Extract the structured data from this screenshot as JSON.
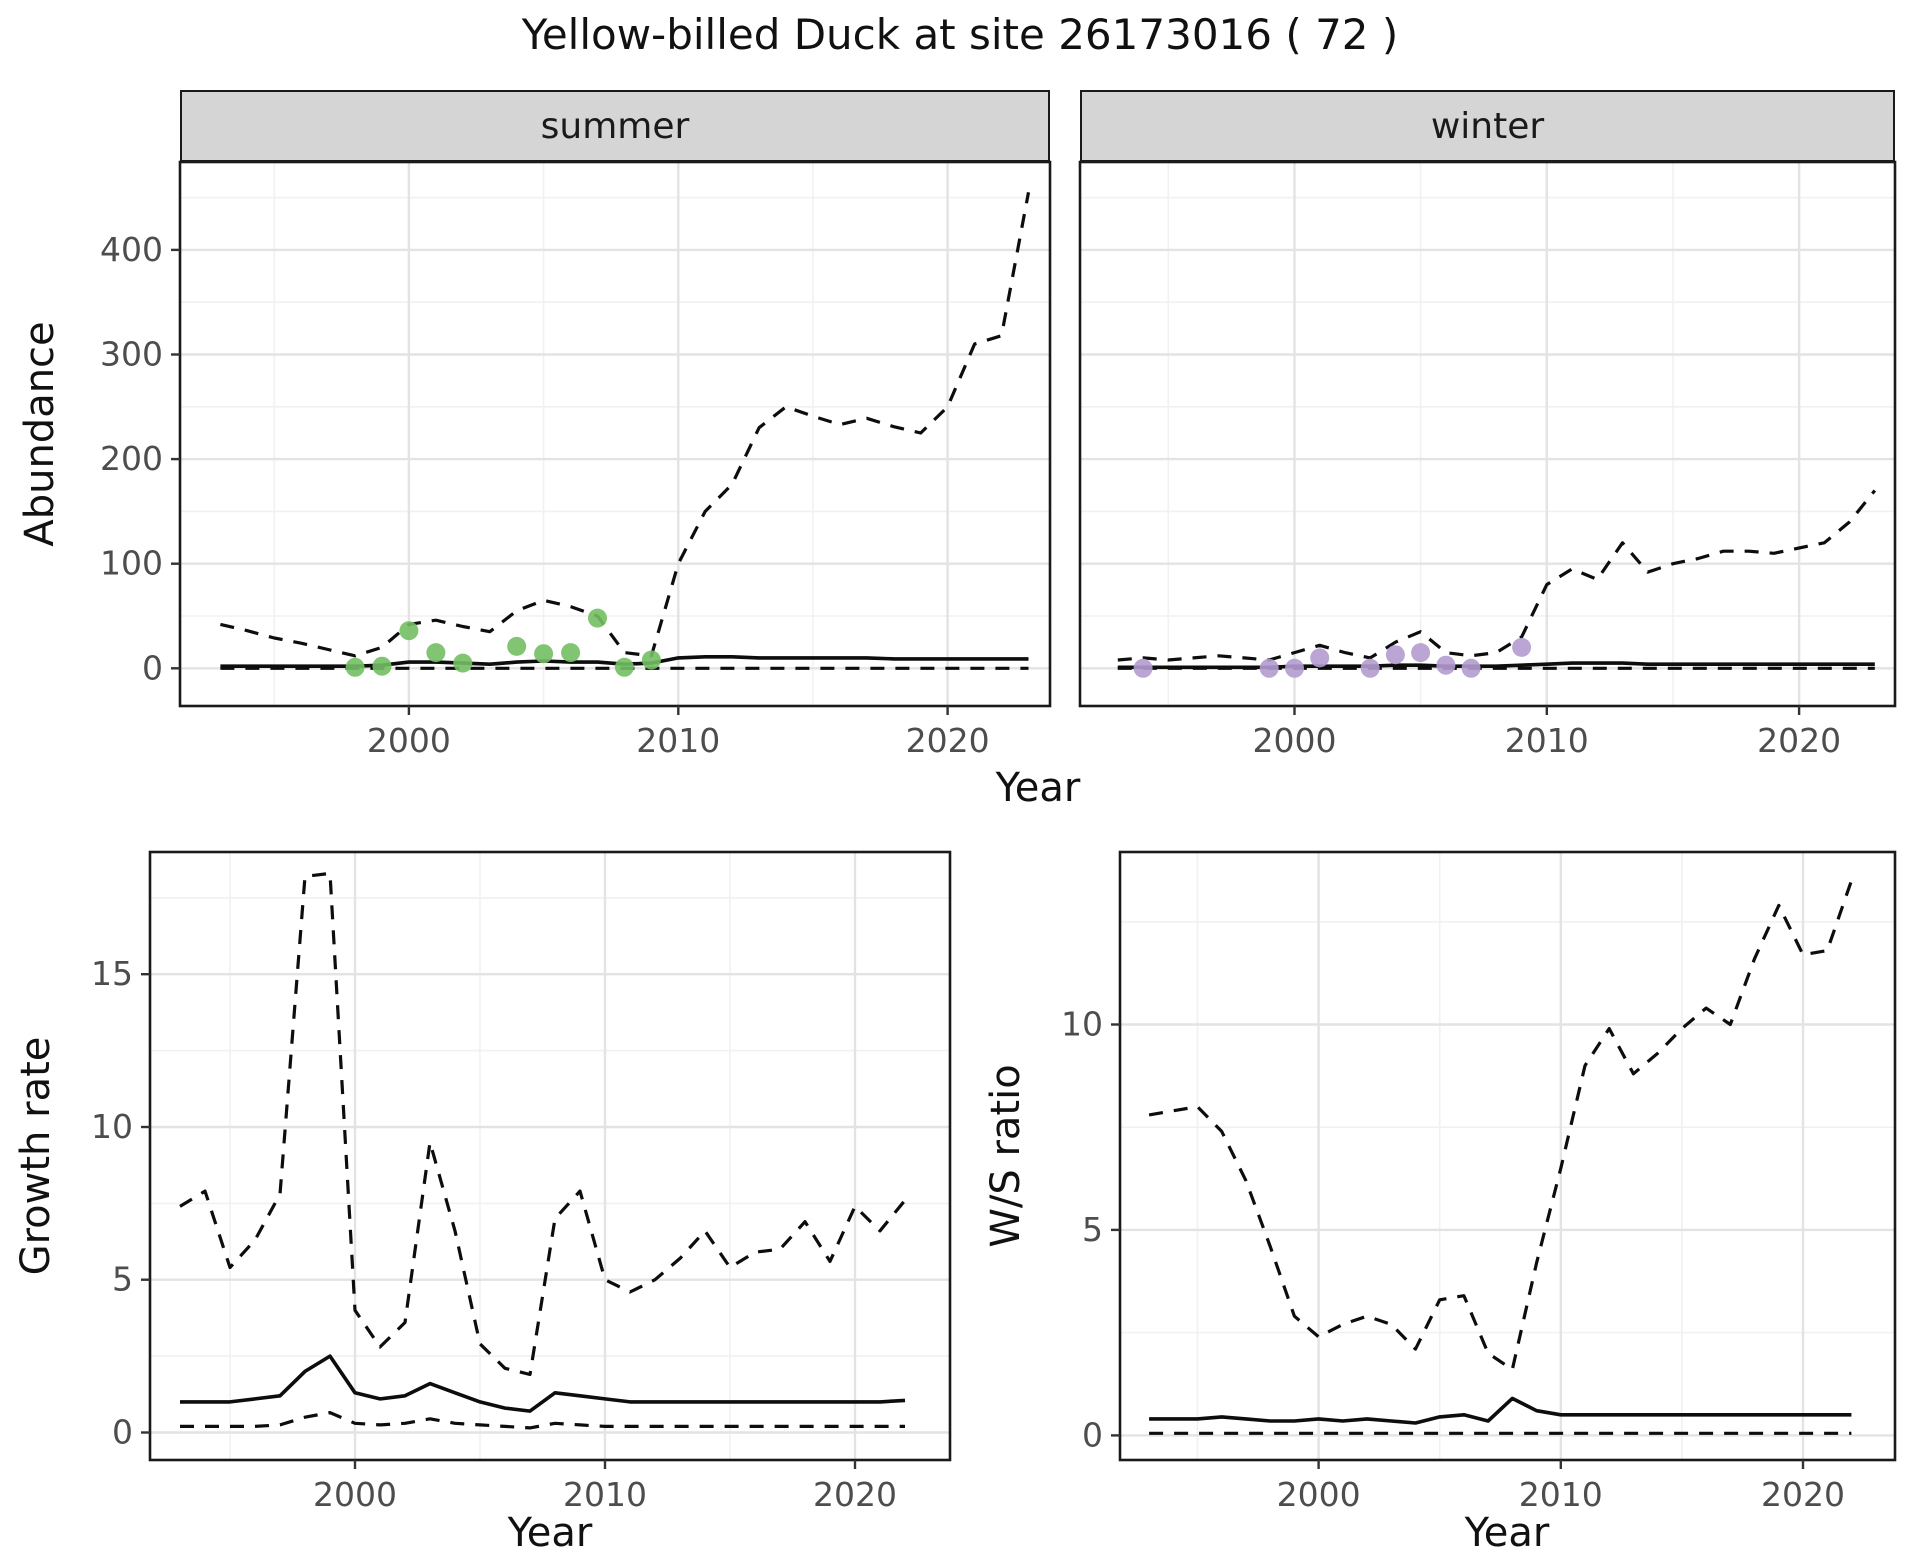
{
  "title": "Yellow-billed Duck at site 26173016 ( 72 )",
  "style": {
    "line_color": "#0d0d0d",
    "strip_background": "#d5d5d5",
    "summer_point_color": "#73bf63",
    "winter_point_color": "#b49bd0"
  },
  "chart_data": [
    {
      "id": "summer-abundance",
      "type": "line",
      "title": "summer",
      "xlabel": "Year",
      "ylabel": "Abundance",
      "xlim": [
        1991.5,
        2023.8
      ],
      "ylim": [
        -36,
        484
      ],
      "xticks": [
        2000,
        2010,
        2020
      ],
      "yticks": [
        0,
        100,
        200,
        300,
        400
      ],
      "x": [
        1993,
        1994,
        1995,
        1996,
        1997,
        1998,
        1999,
        2000,
        2001,
        2002,
        2003,
        2004,
        2005,
        2006,
        2007,
        2008,
        2009,
        2010,
        2011,
        2012,
        2013,
        2014,
        2015,
        2016,
        2017,
        2018,
        2019,
        2020,
        2021,
        2022,
        2023
      ],
      "series": [
        {
          "name": "upper-ci",
          "style": "dashed",
          "y": [
            42,
            36,
            29,
            24,
            18,
            12,
            20,
            42,
            46,
            40,
            35,
            55,
            65,
            59,
            50,
            15,
            12,
            100,
            150,
            176,
            230,
            250,
            241,
            233,
            239,
            231,
            225,
            250,
            310,
            318,
            455
          ]
        },
        {
          "name": "median",
          "style": "solid",
          "y": [
            2,
            2,
            2,
            2,
            2,
            2,
            3,
            6,
            6,
            5,
            4,
            6,
            7,
            6,
            6,
            4,
            5,
            10,
            11,
            11,
            10,
            10,
            10,
            10,
            10,
            9,
            9,
            9,
            9,
            9,
            9
          ]
        },
        {
          "name": "lower-ci",
          "style": "dashed",
          "y": [
            0,
            0,
            0,
            0,
            0,
            0,
            0,
            0,
            0,
            0,
            0,
            0,
            0,
            0,
            0,
            0,
            0,
            0,
            0,
            0,
            0,
            0,
            0,
            0,
            0,
            0,
            0,
            0,
            0,
            0,
            0
          ]
        }
      ],
      "points": {
        "name": "observed-counts",
        "color": "#73bf63",
        "x": [
          1998,
          1999,
          2000,
          2001,
          2002,
          2004,
          2005,
          2006,
          2007,
          2008,
          2009
        ],
        "y": [
          1,
          2,
          36,
          15,
          5,
          21,
          14,
          15,
          48,
          1,
          8
        ]
      }
    },
    {
      "id": "winter-abundance",
      "type": "line",
      "title": "winter",
      "xlabel": "Year",
      "ylabel": "Abundance",
      "xlim": [
        1991.5,
        2023.8
      ],
      "ylim": [
        -36,
        484
      ],
      "xticks": [
        2000,
        2010,
        2020
      ],
      "yticks": [
        0,
        100,
        200,
        300,
        400
      ],
      "x": [
        1993,
        1994,
        1995,
        1996,
        1997,
        1998,
        1999,
        2000,
        2001,
        2002,
        2003,
        2004,
        2005,
        2006,
        2007,
        2008,
        2009,
        2010,
        2011,
        2012,
        2013,
        2014,
        2015,
        2016,
        2017,
        2018,
        2019,
        2020,
        2021,
        2022,
        2023
      ],
      "series": [
        {
          "name": "upper-ci",
          "style": "dashed",
          "y": [
            8,
            10,
            8,
            10,
            12,
            10,
            8,
            15,
            22,
            15,
            10,
            25,
            35,
            15,
            12,
            15,
            30,
            80,
            95,
            85,
            120,
            92,
            100,
            105,
            112,
            112,
            110,
            115,
            120,
            140,
            170
          ]
        },
        {
          "name": "median",
          "style": "solid",
          "y": [
            1,
            1,
            1,
            1,
            1,
            1,
            1,
            2,
            2,
            2,
            2,
            3,
            3,
            2,
            2,
            2,
            3,
            4,
            5,
            5,
            5,
            4,
            4,
            4,
            4,
            4,
            4,
            4,
            4,
            4,
            4
          ]
        },
        {
          "name": "lower-ci",
          "style": "dashed",
          "y": [
            0,
            0,
            0,
            0,
            0,
            0,
            0,
            0,
            0,
            0,
            0,
            0,
            0,
            0,
            0,
            0,
            0,
            0,
            0,
            0,
            0,
            0,
            0,
            0,
            0,
            0,
            0,
            0,
            0,
            0,
            0
          ]
        }
      ],
      "points": {
        "name": "observed-counts",
        "color": "#b49bd0",
        "x": [
          1994,
          1999,
          2000,
          2001,
          2003,
          2004,
          2005,
          2006,
          2007,
          2009
        ],
        "y": [
          0,
          0,
          0,
          10,
          0,
          13,
          15,
          3,
          0,
          20
        ]
      }
    },
    {
      "id": "growth-rate",
      "type": "line",
      "title": "",
      "xlabel": "Year",
      "ylabel": "Growth rate",
      "xlim": [
        1991.8,
        2023.8
      ],
      "ylim": [
        -0.9,
        19.0
      ],
      "xticks": [
        2000,
        2010,
        2020
      ],
      "yticks": [
        0,
        5,
        10,
        15
      ],
      "x": [
        1993,
        1994,
        1995,
        1996,
        1997,
        1998,
        1999,
        2000,
        2001,
        2002,
        2003,
        2004,
        2005,
        2006,
        2007,
        2008,
        2009,
        2010,
        2011,
        2012,
        2013,
        2014,
        2015,
        2016,
        2017,
        2018,
        2019,
        2020,
        2021,
        2022
      ],
      "series": [
        {
          "name": "upper-ci",
          "style": "dashed",
          "y": [
            7.4,
            7.9,
            5.4,
            6.3,
            7.8,
            18.2,
            18.3,
            4.0,
            2.8,
            3.6,
            9.5,
            6.6,
            2.9,
            2.1,
            1.9,
            7.0,
            7.9,
            5.0,
            4.6,
            5.0,
            5.7,
            6.6,
            5.4,
            5.9,
            6.0,
            6.9,
            5.6,
            7.4,
            6.6,
            7.6
          ]
        },
        {
          "name": "median",
          "style": "solid",
          "y": [
            1.0,
            1.0,
            1.0,
            1.1,
            1.2,
            2.0,
            2.5,
            1.3,
            1.1,
            1.2,
            1.6,
            1.3,
            1.0,
            0.8,
            0.7,
            1.3,
            1.2,
            1.1,
            1.0,
            1.0,
            1.0,
            1.0,
            1.0,
            1.0,
            1.0,
            1.0,
            1.0,
            1.0,
            1.0,
            1.05
          ]
        },
        {
          "name": "lower-ci",
          "style": "dashed",
          "y": [
            0.2,
            0.2,
            0.2,
            0.2,
            0.25,
            0.5,
            0.65,
            0.3,
            0.25,
            0.3,
            0.45,
            0.3,
            0.25,
            0.2,
            0.15,
            0.3,
            0.25,
            0.2,
            0.2,
            0.2,
            0.2,
            0.2,
            0.2,
            0.2,
            0.2,
            0.2,
            0.2,
            0.2,
            0.2,
            0.2
          ]
        }
      ],
      "points": null
    },
    {
      "id": "ws-ratio",
      "type": "line",
      "title": "",
      "xlabel": "Year",
      "ylabel": "W/S ratio",
      "xlim": [
        1991.8,
        2023.8
      ],
      "ylim": [
        -0.6,
        14.2
      ],
      "xticks": [
        2000,
        2010,
        2020
      ],
      "yticks": [
        0,
        5,
        10
      ],
      "x": [
        1993,
        1994,
        1995,
        1996,
        1997,
        1998,
        1999,
        2000,
        2001,
        2002,
        2003,
        2004,
        2005,
        2006,
        2007,
        2008,
        2009,
        2010,
        2011,
        2012,
        2013,
        2014,
        2015,
        2016,
        2017,
        2018,
        2019,
        2020,
        2021,
        2022
      ],
      "series": [
        {
          "name": "upper-ci",
          "style": "dashed",
          "y": [
            7.8,
            7.9,
            8.0,
            7.4,
            6.2,
            4.6,
            2.9,
            2.4,
            2.7,
            2.9,
            2.7,
            2.1,
            3.3,
            3.4,
            2.0,
            1.6,
            4.2,
            6.5,
            9.0,
            9.9,
            8.8,
            9.3,
            9.9,
            10.4,
            10.0,
            11.6,
            12.9,
            11.7,
            11.8,
            13.5
          ]
        },
        {
          "name": "median",
          "style": "solid",
          "y": [
            0.4,
            0.4,
            0.4,
            0.45,
            0.4,
            0.35,
            0.35,
            0.4,
            0.35,
            0.4,
            0.35,
            0.3,
            0.45,
            0.5,
            0.35,
            0.9,
            0.6,
            0.5,
            0.5,
            0.5,
            0.5,
            0.5,
            0.5,
            0.5,
            0.5,
            0.5,
            0.5,
            0.5,
            0.5,
            0.5
          ]
        },
        {
          "name": "lower-ci",
          "style": "dashed",
          "y": [
            0.05,
            0.05,
            0.05,
            0.05,
            0.05,
            0.05,
            0.05,
            0.05,
            0.05,
            0.05,
            0.05,
            0.05,
            0.05,
            0.05,
            0.05,
            0.05,
            0.05,
            0.05,
            0.05,
            0.05,
            0.05,
            0.05,
            0.05,
            0.05,
            0.05,
            0.05,
            0.05,
            0.05,
            0.05,
            0.05
          ]
        }
      ],
      "points": null
    }
  ]
}
